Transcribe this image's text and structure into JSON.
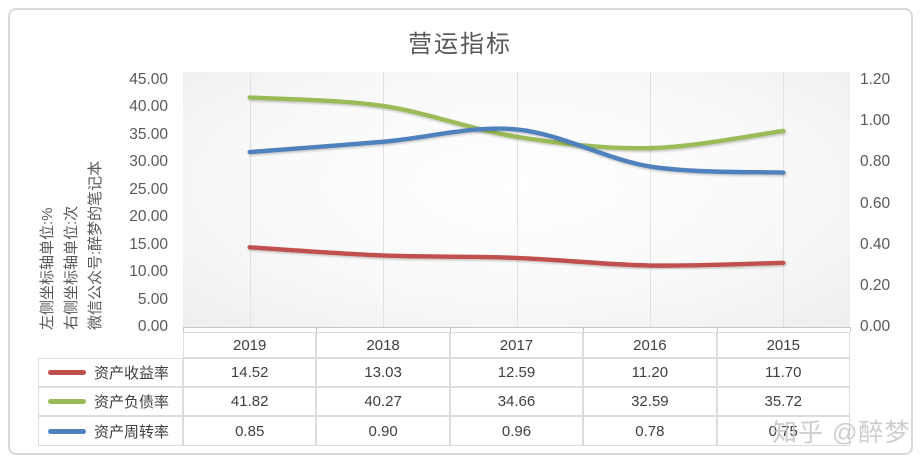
{
  "title": "营运指标",
  "watermark": "知乎 @醉梦",
  "axis_note": {
    "lines": [
      "左侧坐标轴单位:%",
      "右侧坐标轴单位:次",
      "微信公众号:醉梦的笔记本"
    ]
  },
  "chart_data": {
    "type": "line",
    "smoothed": true,
    "title": "营运指标",
    "categories": [
      "2019",
      "2018",
      "2017",
      "2016",
      "2015"
    ],
    "series": [
      {
        "name": "资产收益率",
        "axis": "left",
        "color": "#C0504D",
        "values": [
          14.52,
          13.03,
          12.59,
          11.2,
          11.7
        ]
      },
      {
        "name": "资产负债率",
        "axis": "left",
        "color": "#9BBB59",
        "values": [
          41.82,
          40.27,
          34.66,
          32.59,
          35.72
        ]
      },
      {
        "name": "资产周转率",
        "axis": "right",
        "color": "#4F81BD",
        "values": [
          0.85,
          0.9,
          0.96,
          0.78,
          0.75
        ]
      }
    ],
    "left_axis": {
      "min": 0,
      "max": 45,
      "step": 5,
      "ticks": [
        "45.00",
        "40.00",
        "35.00",
        "30.00",
        "25.00",
        "20.00",
        "15.00",
        "10.00",
        "5.00",
        "0.00"
      ]
    },
    "right_axis": {
      "min": 0,
      "max": 1.2,
      "step": 0.2,
      "ticks": [
        "1.20",
        "1.00",
        "0.80",
        "0.60",
        "0.40",
        "0.20",
        "0.00"
      ]
    },
    "grid": "vertical-major",
    "legend_position": "table-left"
  },
  "table": {
    "header_years": [
      "2019",
      "2018",
      "2017",
      "2016",
      "2015"
    ],
    "rows": [
      {
        "label": "资产收益率",
        "color": "#C0504D",
        "cells": [
          "14.52",
          "13.03",
          "12.59",
          "11.20",
          "11.70"
        ]
      },
      {
        "label": "资产负债率",
        "color": "#9BBB59",
        "cells": [
          "41.82",
          "40.27",
          "34.66",
          "32.59",
          "35.72"
        ]
      },
      {
        "label": "资产周转率",
        "color": "#4F81BD",
        "cells": [
          "0.85",
          "0.90",
          "0.96",
          "0.78",
          "0.75"
        ]
      }
    ]
  }
}
